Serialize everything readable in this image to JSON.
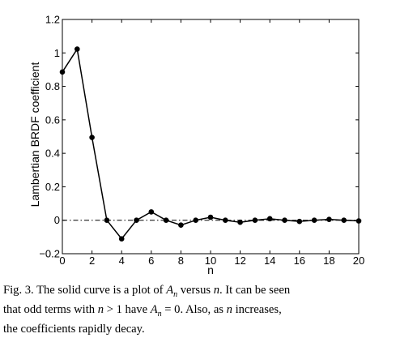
{
  "chart_data": {
    "type": "line",
    "xlabel": "n",
    "ylabel": "Lambertian BRDF coefficient",
    "xlim": [
      0,
      20
    ],
    "ylim": [
      -0.2,
      1.2
    ],
    "x_ticks": [
      0,
      2,
      4,
      6,
      8,
      10,
      12,
      14,
      16,
      18,
      20
    ],
    "y_ticks": [
      -0.2,
      0,
      0.2,
      0.4,
      0.6,
      0.8,
      1,
      1.2
    ],
    "x_tick_labels": [
      "0",
      "2",
      "4",
      "6",
      "8",
      "10",
      "12",
      "14",
      "16",
      "18",
      "20"
    ],
    "y_tick_labels": [
      "−0.2",
      "0",
      "0.2",
      "0.4",
      "0.6",
      "0.8",
      "1",
      "1.2"
    ],
    "grid": false,
    "reference_line": {
      "y": 0,
      "style": "dash-dot"
    },
    "series": [
      {
        "x": [
          0,
          1,
          2,
          3,
          4,
          5,
          6,
          7,
          8,
          9,
          10,
          11,
          12,
          13,
          14,
          15,
          16,
          17,
          18,
          19,
          20
        ],
        "values": [
          0.886,
          1.023,
          0.495,
          0.0,
          -0.111,
          0.0,
          0.05,
          0.0,
          -0.029,
          0.0,
          0.018,
          0.0,
          -0.012,
          0.0,
          0.009,
          0.0,
          -0.007,
          0.0,
          0.005,
          0.0,
          -0.004
        ],
        "color": "#000000",
        "marker": "circle"
      }
    ]
  },
  "caption": {
    "line1_parts": [
      "Fig. 3.   The solid curve is a plot of ",
      "A",
      "n",
      " versus ",
      "n",
      ".   It can be seen"
    ],
    "line2_parts": [
      "that odd terms with ",
      "n",
      " > 1 have ",
      "A",
      "n",
      " = 0.   Also, as ",
      "n",
      " increases,"
    ],
    "line3": "the coefficients rapidly decay."
  }
}
